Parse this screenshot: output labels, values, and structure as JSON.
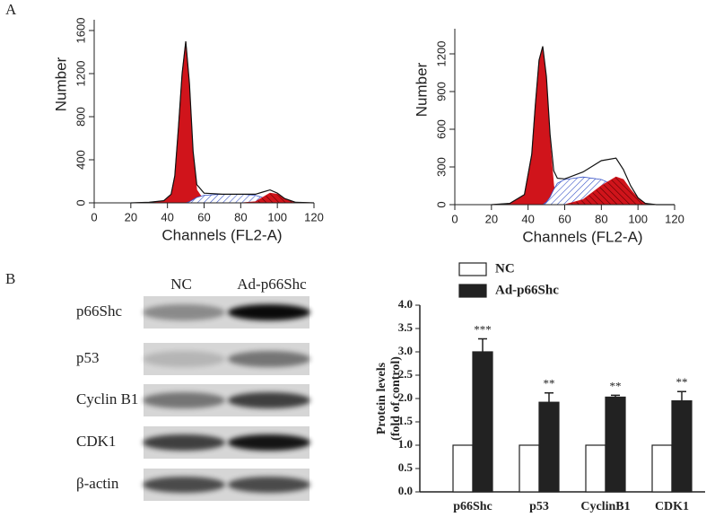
{
  "panels": [
    "A",
    "B"
  ],
  "blot": {
    "columns": [
      "NC",
      "Ad-p66Shc"
    ],
    "rows": [
      "p66Shc",
      "p53",
      "Cyclin B1",
      "CDK1",
      "β-actin"
    ]
  },
  "chart_data": [
    {
      "type": "area",
      "xlabel": "Channels (FL2-A)",
      "ylabel": "Number",
      "x": [
        20,
        30,
        38,
        42,
        44,
        46,
        48,
        50,
        52,
        54,
        56,
        60,
        70,
        80,
        88,
        92,
        96,
        100,
        104,
        110,
        120
      ],
      "series": [
        {
          "color": "#d0141b",
          "fill": "solid",
          "values": [
            0,
            5,
            20,
            80,
            250,
            700,
            1200,
            1500,
            1100,
            450,
            120,
            20,
            0,
            0,
            0,
            0,
            0,
            0,
            0,
            0,
            0
          ]
        },
        {
          "color": "#3a55c8",
          "fill": "hatch",
          "values": [
            0,
            0,
            0,
            0,
            0,
            0,
            0,
            0,
            10,
            30,
            50,
            70,
            80,
            80,
            70,
            50,
            30,
            10,
            0,
            0,
            0
          ]
        },
        {
          "color": "#d0141b",
          "fill": "hatch",
          "values": [
            0,
            0,
            0,
            0,
            0,
            0,
            0,
            0,
            0,
            0,
            0,
            0,
            0,
            0,
            10,
            50,
            90,
            80,
            40,
            5,
            0
          ]
        },
        {
          "color": "#111111",
          "fill": "none",
          "values": [
            0,
            5,
            20,
            80,
            250,
            700,
            1200,
            1500,
            1110,
            480,
            170,
            90,
            80,
            80,
            80,
            100,
            120,
            90,
            40,
            5,
            0
          ]
        }
      ],
      "xlim": [
        0,
        120
      ],
      "xticks": [
        0,
        20,
        40,
        60,
        80,
        100,
        120
      ],
      "ylim": [
        0,
        1700
      ],
      "yticks": [
        0,
        400,
        800,
        1200,
        1600
      ]
    },
    {
      "type": "area",
      "xlabel": "Channels (FL2-A)",
      "ylabel": "Number",
      "x": [
        20,
        30,
        38,
        42,
        44,
        46,
        48,
        50,
        52,
        54,
        56,
        60,
        70,
        80,
        88,
        92,
        96,
        100,
        104,
        110,
        120
      ],
      "series": [
        {
          "color": "#d0141b",
          "fill": "solid",
          "values": [
            0,
            10,
            80,
            400,
            800,
            1150,
            1260,
            1000,
            500,
            150,
            40,
            5,
            0,
            0,
            0,
            0,
            0,
            0,
            0,
            0,
            0
          ]
        },
        {
          "color": "#3a55c8",
          "fill": "hatch",
          "values": [
            0,
            0,
            0,
            0,
            0,
            0,
            0,
            20,
            60,
            120,
            170,
            200,
            220,
            200,
            150,
            80,
            30,
            5,
            0,
            0,
            0
          ]
        },
        {
          "color": "#d0141b",
          "fill": "hatch",
          "values": [
            0,
            0,
            0,
            0,
            0,
            0,
            0,
            0,
            0,
            0,
            0,
            0,
            40,
            150,
            220,
            200,
            120,
            50,
            10,
            0,
            0
          ]
        },
        {
          "color": "#111111",
          "fill": "none",
          "values": [
            0,
            10,
            80,
            400,
            800,
            1150,
            1260,
            1020,
            560,
            270,
            210,
            205,
            260,
            350,
            370,
            280,
            150,
            55,
            10,
            0,
            0
          ]
        }
      ],
      "xlim": [
        0,
        120
      ],
      "xticks": [
        0,
        20,
        40,
        60,
        80,
        100,
        120
      ],
      "ylim": [
        0,
        1400
      ],
      "yticks": [
        0,
        300,
        600,
        900,
        1200
      ]
    },
    {
      "type": "bar",
      "ylabel": [
        "Protein levels",
        "(fold of control)"
      ],
      "categories": [
        "p66Shc",
        "p53",
        "CyclinB1",
        "CDK1"
      ],
      "series": [
        {
          "name": "NC",
          "color": "#ffffff",
          "values": [
            1,
            1,
            1,
            1
          ]
        },
        {
          "name": "Ad-p66Shc",
          "color": "#222222",
          "values": [
            3.0,
            1.92,
            2.03,
            1.95
          ],
          "errors": [
            0.28,
            0.2,
            0.04,
            0.2
          ],
          "annotations": [
            "***",
            "**",
            "**",
            "**"
          ]
        }
      ],
      "ylim": [
        0,
        4
      ],
      "yticks": [
        {
          "value": 0,
          "label": "0.0"
        },
        {
          "value": 0.5,
          "label": "0.5"
        },
        {
          "value": 1,
          "label": "1.0"
        },
        {
          "value": 1.5,
          "label": "1.5"
        },
        {
          "value": 2,
          "label": "2.0"
        },
        {
          "value": 2.5,
          "label": "2.5"
        },
        {
          "value": 3,
          "label": "3.0"
        },
        {
          "value": 3.5,
          "label": "3.5"
        },
        {
          "value": 4,
          "label": "4.0"
        }
      ]
    }
  ]
}
